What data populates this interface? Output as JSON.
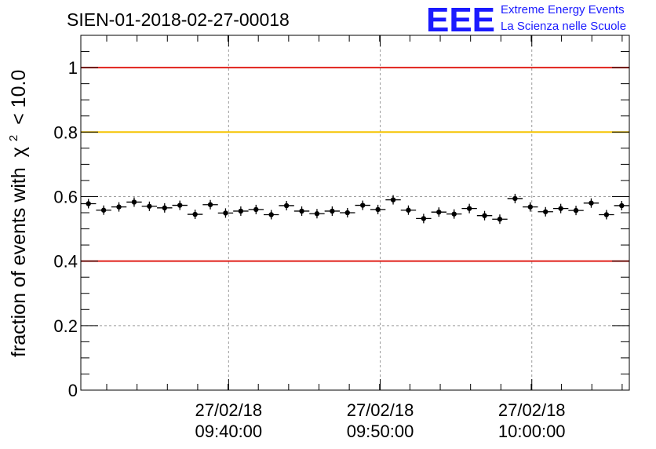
{
  "chart_data": {
    "type": "scatter",
    "title": "SIEN-01-2018-02-27-00018",
    "ylabel": "fraction of events with",
    "ylabel_symbol": "χ",
    "ylabel_sup": "2",
    "ylabel_suffix": "< 10.0",
    "ylim": [
      0,
      1.1
    ],
    "yticks": [
      "0",
      "0.2",
      "0.4",
      "0.6",
      "0.8",
      "1"
    ],
    "ytick_values": [
      0,
      0.2,
      0.4,
      0.6,
      0.8,
      1.0
    ],
    "xlim": [
      0,
      36
    ],
    "xticks": [
      {
        "x": 9.7,
        "date": "27/02/18",
        "time": "09:40:00"
      },
      {
        "x": 19.65,
        "date": "27/02/18",
        "time": "09:50:00"
      },
      {
        "x": 29.6,
        "date": "27/02/18",
        "time": "10:00:00"
      }
    ],
    "reference_lines": [
      {
        "y": 1.0,
        "color": "#e0201a"
      },
      {
        "y": 0.8,
        "color": "#f5c400"
      },
      {
        "y": 0.4,
        "color": "#e0201a"
      }
    ],
    "grid": true,
    "x": [
      0.5,
      1.5,
      2.5,
      3.5,
      4.5,
      5.5,
      6.5,
      7.5,
      8.5,
      9.5,
      10.5,
      11.5,
      12.5,
      13.5,
      14.5,
      15.5,
      16.5,
      17.5,
      18.5,
      19.5,
      20.5,
      21.5,
      22.5,
      23.5,
      24.5,
      25.5,
      26.5,
      27.5,
      28.5,
      29.5,
      30.5,
      31.5,
      32.5,
      33.5,
      34.5,
      35.5
    ],
    "values": [
      0.578,
      0.558,
      0.568,
      0.583,
      0.57,
      0.565,
      0.573,
      0.545,
      0.575,
      0.549,
      0.555,
      0.56,
      0.544,
      0.572,
      0.555,
      0.547,
      0.555,
      0.55,
      0.573,
      0.56,
      0.59,
      0.558,
      0.532,
      0.552,
      0.546,
      0.563,
      0.541,
      0.53,
      0.594,
      0.568,
      0.553,
      0.563,
      0.557,
      0.58,
      0.544,
      0.572
    ],
    "marker_color": "#000000"
  },
  "logo": {
    "mark": "EEE",
    "line1": "Extreme Energy Events",
    "line2": "La Scienza nelle Scuole",
    "color": "#1a1aff"
  }
}
